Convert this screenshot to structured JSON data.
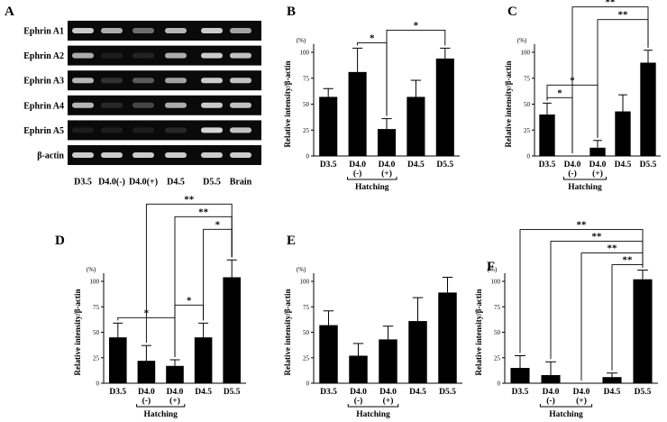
{
  "blot": {
    "panel_label": "A",
    "row_labels": [
      "Ephrin A1",
      "Ephrin A2",
      "Ephrin A3",
      "Ephrin A4",
      "Ephrin A5",
      "β-actin"
    ],
    "lane_labels": [
      "D3.5",
      "D4.0(-)",
      "D4.0(+)",
      "D4.5",
      "D5.5",
      "Brain"
    ],
    "band_intensity": [
      [
        0.9,
        0.75,
        0.45,
        0.8,
        0.9,
        0.7
      ],
      [
        0.75,
        0.05,
        0.08,
        0.75,
        0.9,
        0.85
      ],
      [
        0.8,
        0.15,
        0.35,
        0.7,
        0.9,
        0.85
      ],
      [
        0.8,
        0.1,
        0.25,
        0.75,
        0.9,
        0.85
      ],
      [
        0.05,
        0.05,
        0.05,
        0.1,
        0.95,
        0.85
      ],
      [
        0.9,
        0.9,
        0.9,
        0.9,
        0.9,
        0.9
      ]
    ]
  },
  "chart_data": [
    {
      "panel": "B",
      "type": "bar",
      "categories": [
        "D3.5",
        "D4.0 (-)",
        "D4.0 (+)",
        "D4.5",
        "D5.5"
      ],
      "values": [
        57,
        81,
        26,
        57,
        94
      ],
      "errors": [
        8,
        23,
        10,
        16,
        10
      ],
      "ylabel": "Relative intensity/β-actin",
      "yunit": "(%)",
      "ylim": [
        0,
        100
      ],
      "yticks": [
        0,
        25,
        50,
        75,
        100
      ],
      "group_label": "Hatching",
      "significance": [
        {
          "from": 1,
          "to": 2,
          "label": "*"
        },
        {
          "from": 2,
          "to": 4,
          "label": "*"
        }
      ]
    },
    {
      "panel": "C",
      "type": "bar",
      "categories": [
        "D3.5",
        "D4.0 (-)",
        "D4.0 (+)",
        "D4.5",
        "D5.5"
      ],
      "values": [
        40,
        0,
        8,
        43,
        90
      ],
      "errors": [
        11,
        0,
        7,
        16,
        12
      ],
      "ylabel": "Relative intensity/β-actin",
      "yunit": "(%)",
      "ylim": [
        0,
        100
      ],
      "yticks": [
        0,
        25,
        50,
        75,
        100
      ],
      "group_label": "Hatching",
      "significance": [
        {
          "from": 0,
          "to": 1,
          "label": "*"
        },
        {
          "from": 0,
          "to": 2,
          "label": "*"
        },
        {
          "from": 2,
          "to": 4,
          "label": "**"
        },
        {
          "from": 1,
          "to": 4,
          "label": "**"
        }
      ]
    },
    {
      "panel": "D",
      "type": "bar",
      "categories": [
        "D3.5",
        "D4.0 (-)",
        "D4.0 (+)",
        "D4.5",
        "D5.5"
      ],
      "values": [
        45,
        22,
        17,
        45,
        104
      ],
      "errors": [
        14,
        15,
        6,
        14,
        17
      ],
      "ylabel": "Relative intensity/β-actin",
      "yunit": "(%)",
      "ylim": [
        0,
        100
      ],
      "yticks": [
        0,
        25,
        50,
        75,
        100
      ],
      "group_label": "Hatching",
      "significance": [
        {
          "from": 0,
          "to": 2,
          "label": "*"
        },
        {
          "from": 2,
          "to": 3,
          "label": "*"
        },
        {
          "from": 3,
          "to": 4,
          "label": "*"
        },
        {
          "from": 2,
          "to": 4,
          "label": "**"
        },
        {
          "from": 1,
          "to": 4,
          "label": "**"
        }
      ]
    },
    {
      "panel": "E",
      "type": "bar",
      "categories": [
        "D3.5",
        "D4.0 (-)",
        "D4.0 (+)",
        "D4.5",
        "D5.5"
      ],
      "values": [
        57,
        27,
        43,
        61,
        89
      ],
      "errors": [
        14,
        12,
        13,
        23,
        15
      ],
      "ylabel": "Relative intensity/β-actin",
      "yunit": "(%)",
      "ylim": [
        0,
        100
      ],
      "yticks": [
        0,
        25,
        50,
        75,
        100
      ],
      "group_label": "Hatching",
      "significance": []
    },
    {
      "panel": "F",
      "type": "bar",
      "categories": [
        "D3.5",
        "D4.0 (-)",
        "D4.0 (+)",
        "D4.5",
        "D5.5"
      ],
      "values": [
        15,
        8,
        0,
        6,
        102
      ],
      "errors": [
        12,
        13,
        0,
        4,
        9
      ],
      "ylabel": "Relative intensity/β-actin",
      "yunit": "(%)",
      "ylim": [
        0,
        100
      ],
      "yticks": [
        0,
        25,
        50,
        75,
        100
      ],
      "group_label": "Hatching",
      "significance": [
        {
          "from": 3,
          "to": 4,
          "label": "**"
        },
        {
          "from": 2,
          "to": 4,
          "label": "**"
        },
        {
          "from": 1,
          "to": 4,
          "label": "**"
        },
        {
          "from": 0,
          "to": 4,
          "label": "**"
        }
      ]
    }
  ]
}
